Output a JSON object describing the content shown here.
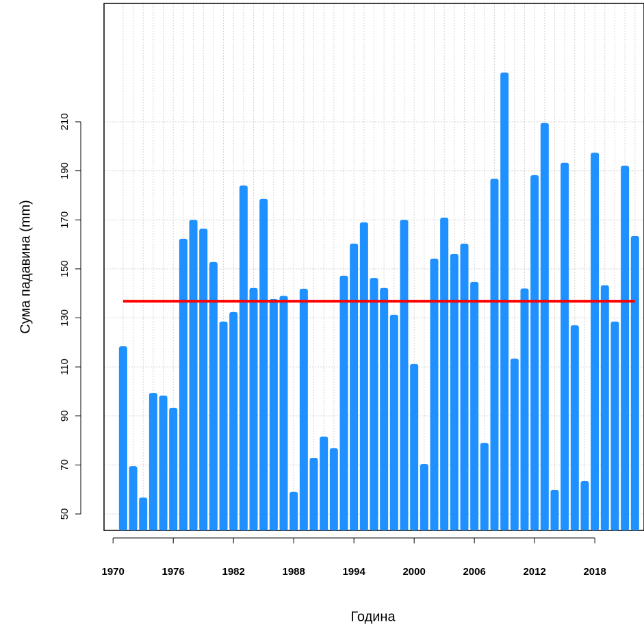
{
  "chart_data": {
    "type": "bar",
    "x_label": "Година",
    "y_label": "Сума падавина (mm)",
    "x": [
      1971,
      1972,
      1973,
      1974,
      1975,
      1976,
      1977,
      1978,
      1979,
      1980,
      1981,
      1982,
      1983,
      1984,
      1985,
      1986,
      1987,
      1988,
      1989,
      1990,
      1991,
      1992,
      1993,
      1994,
      1995,
      1996,
      1997,
      1998,
      1999,
      2000,
      2001,
      2002,
      2003,
      2004,
      2005,
      2006,
      2007,
      2008,
      2009,
      2010,
      2011,
      2012,
      2013,
      2014,
      2015,
      2016,
      2017,
      2018,
      2019,
      2020,
      2021,
      2022
    ],
    "values": [
      118.4,
      69.5,
      56.7,
      99.4,
      98.3,
      93.3,
      162.3,
      170,
      166.4,
      152.8,
      128.5,
      132.4,
      184,
      142.2,
      178.5,
      137.7,
      139,
      59,
      141.9,
      72.9,
      81.6,
      76.8,
      147.2,
      160.3,
      169,
      146.3,
      142.2,
      131.3,
      170,
      111.2,
      70.4,
      154.2,
      170.9,
      156.1,
      160.3,
      144.7,
      79,
      186.8,
      230.1,
      113.4,
      142,
      188.2,
      209.5,
      59.8,
      193.3,
      127,
      63.4,
      197.4,
      143.3,
      128.5,
      192.1,
      163.4
    ],
    "color": "#1e90ff",
    "reference_line": {
      "value": 136.8,
      "color": "#ff0000"
    },
    "xlim": [
      1969.1,
      2022.9
    ],
    "xticks": [
      1970,
      1976,
      1982,
      1988,
      1994,
      2000,
      2006,
      2012,
      2018
    ],
    "ylim": [
      43.3,
      258.3
    ],
    "yticks": [
      50,
      70,
      90,
      110,
      130,
      150,
      170,
      190,
      210
    ],
    "grid": true
  }
}
